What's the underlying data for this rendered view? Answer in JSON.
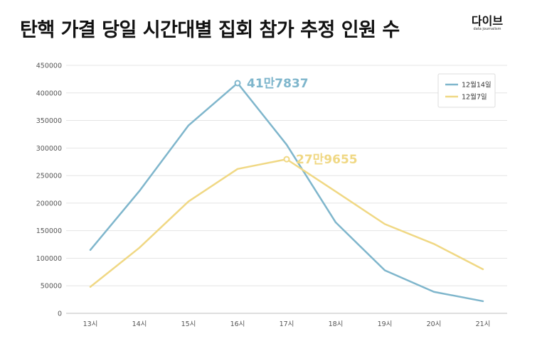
{
  "header": {
    "title": "탄핵 가결 당일 시간대별 집회 참가 추정 인원 수",
    "brand_name": "다이브",
    "brand_sub": "data journalism"
  },
  "chart_data": {
    "type": "line",
    "title": "탄핵 가결 당일 시간대별 집회 참가 추정 인원 수",
    "xlabel": "",
    "ylabel": "",
    "categories": [
      "13시",
      "14시",
      "15시",
      "16시",
      "17시",
      "18시",
      "19시",
      "20시",
      "21시"
    ],
    "ylim": [
      0,
      450000
    ],
    "yticks": [
      0,
      50000,
      100000,
      150000,
      200000,
      250000,
      300000,
      350000,
      400000,
      450000
    ],
    "grid": true,
    "legend_position": "top-right",
    "series": [
      {
        "name": "12월14일",
        "color": "#7fb6cc",
        "values": [
          115000,
          222000,
          341000,
          417837,
          306000,
          165000,
          78000,
          39000,
          22000
        ]
      },
      {
        "name": "12월7일",
        "color": "#f0d884",
        "values": [
          48000,
          119000,
          203000,
          262000,
          279655,
          221000,
          162000,
          126000,
          80000
        ]
      }
    ],
    "annotations": [
      {
        "text": "41만7837",
        "series": 0,
        "index": 3,
        "color": "#7fb6cc"
      },
      {
        "text": "27만9655",
        "series": 1,
        "index": 4,
        "color": "#f0d884"
      }
    ]
  }
}
